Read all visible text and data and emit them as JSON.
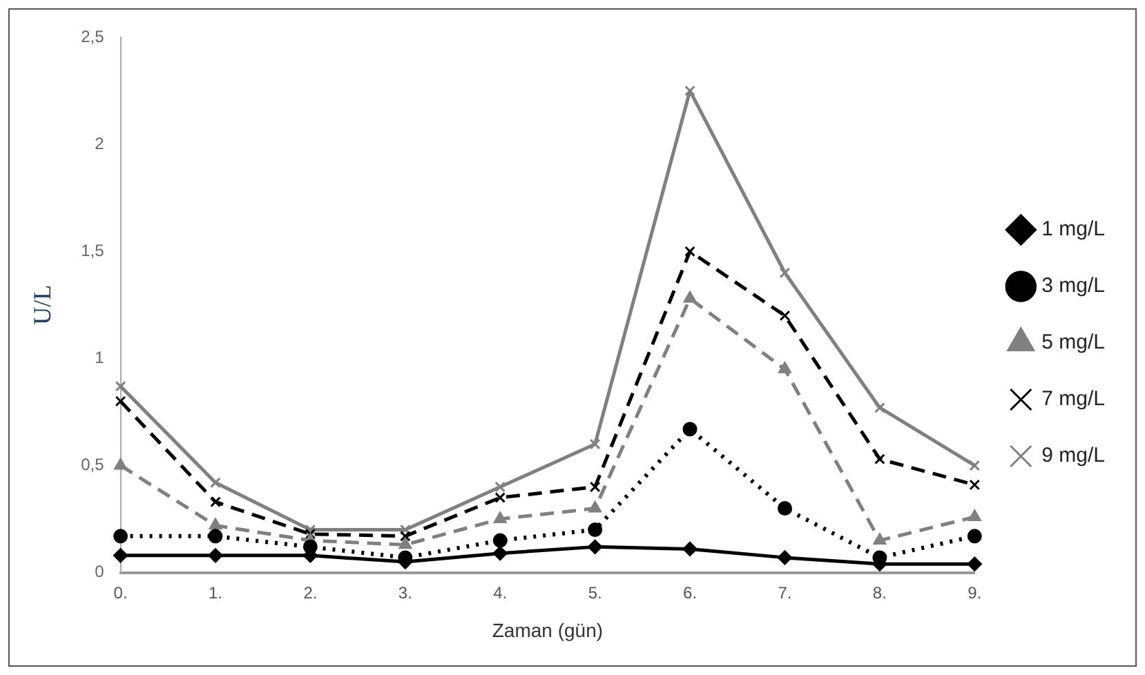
{
  "chart_data": {
    "type": "line",
    "xlabel": "Zaman (gün)",
    "ylabel": "U/L",
    "categories": [
      "0.",
      "1.",
      "2.",
      "3.",
      "4.",
      "5.",
      "6.",
      "7.",
      "8.",
      "9."
    ],
    "series": [
      {
        "name": "9 mg/L",
        "color": "#808080",
        "marker": "cross",
        "line_style": "solid",
        "values": [
          0.87,
          0.42,
          0.2,
          0.2,
          0.4,
          0.6,
          2.25,
          1.4,
          0.77,
          0.5
        ]
      },
      {
        "name": "7 mg/L",
        "color": "#000000",
        "marker": "cross",
        "line_style": "dashed",
        "values": [
          0.8,
          0.33,
          0.18,
          0.17,
          0.35,
          0.4,
          1.5,
          1.2,
          0.53,
          0.41
        ]
      },
      {
        "name": "5 mg/L",
        "color": "#808080",
        "marker": "triangle",
        "line_style": "dashed",
        "values": [
          0.5,
          0.22,
          0.15,
          0.13,
          0.25,
          0.3,
          1.28,
          0.95,
          0.15,
          0.26
        ]
      },
      {
        "name": "3 mg/L",
        "color": "#000000",
        "marker": "circle",
        "line_style": "dotted",
        "values": [
          0.17,
          0.17,
          0.12,
          0.07,
          0.15,
          0.2,
          0.67,
          0.3,
          0.07,
          0.17
        ]
      },
      {
        "name": "1 mg/L",
        "color": "#000000",
        "marker": "diamond",
        "line_style": "solid",
        "values": [
          0.08,
          0.08,
          0.08,
          0.05,
          0.09,
          0.12,
          0.11,
          0.07,
          0.04,
          0.04
        ]
      }
    ],
    "ylim": [
      0,
      2.5
    ],
    "yticks": [
      0,
      {
        "value": 0.5,
        "label": "0,5"
      },
      1,
      {
        "value": 1.5,
        "label": "1,5"
      },
      2,
      {
        "value": 2.5,
        "label": "2,5"
      }
    ],
    "grid": false,
    "legend": "right"
  }
}
